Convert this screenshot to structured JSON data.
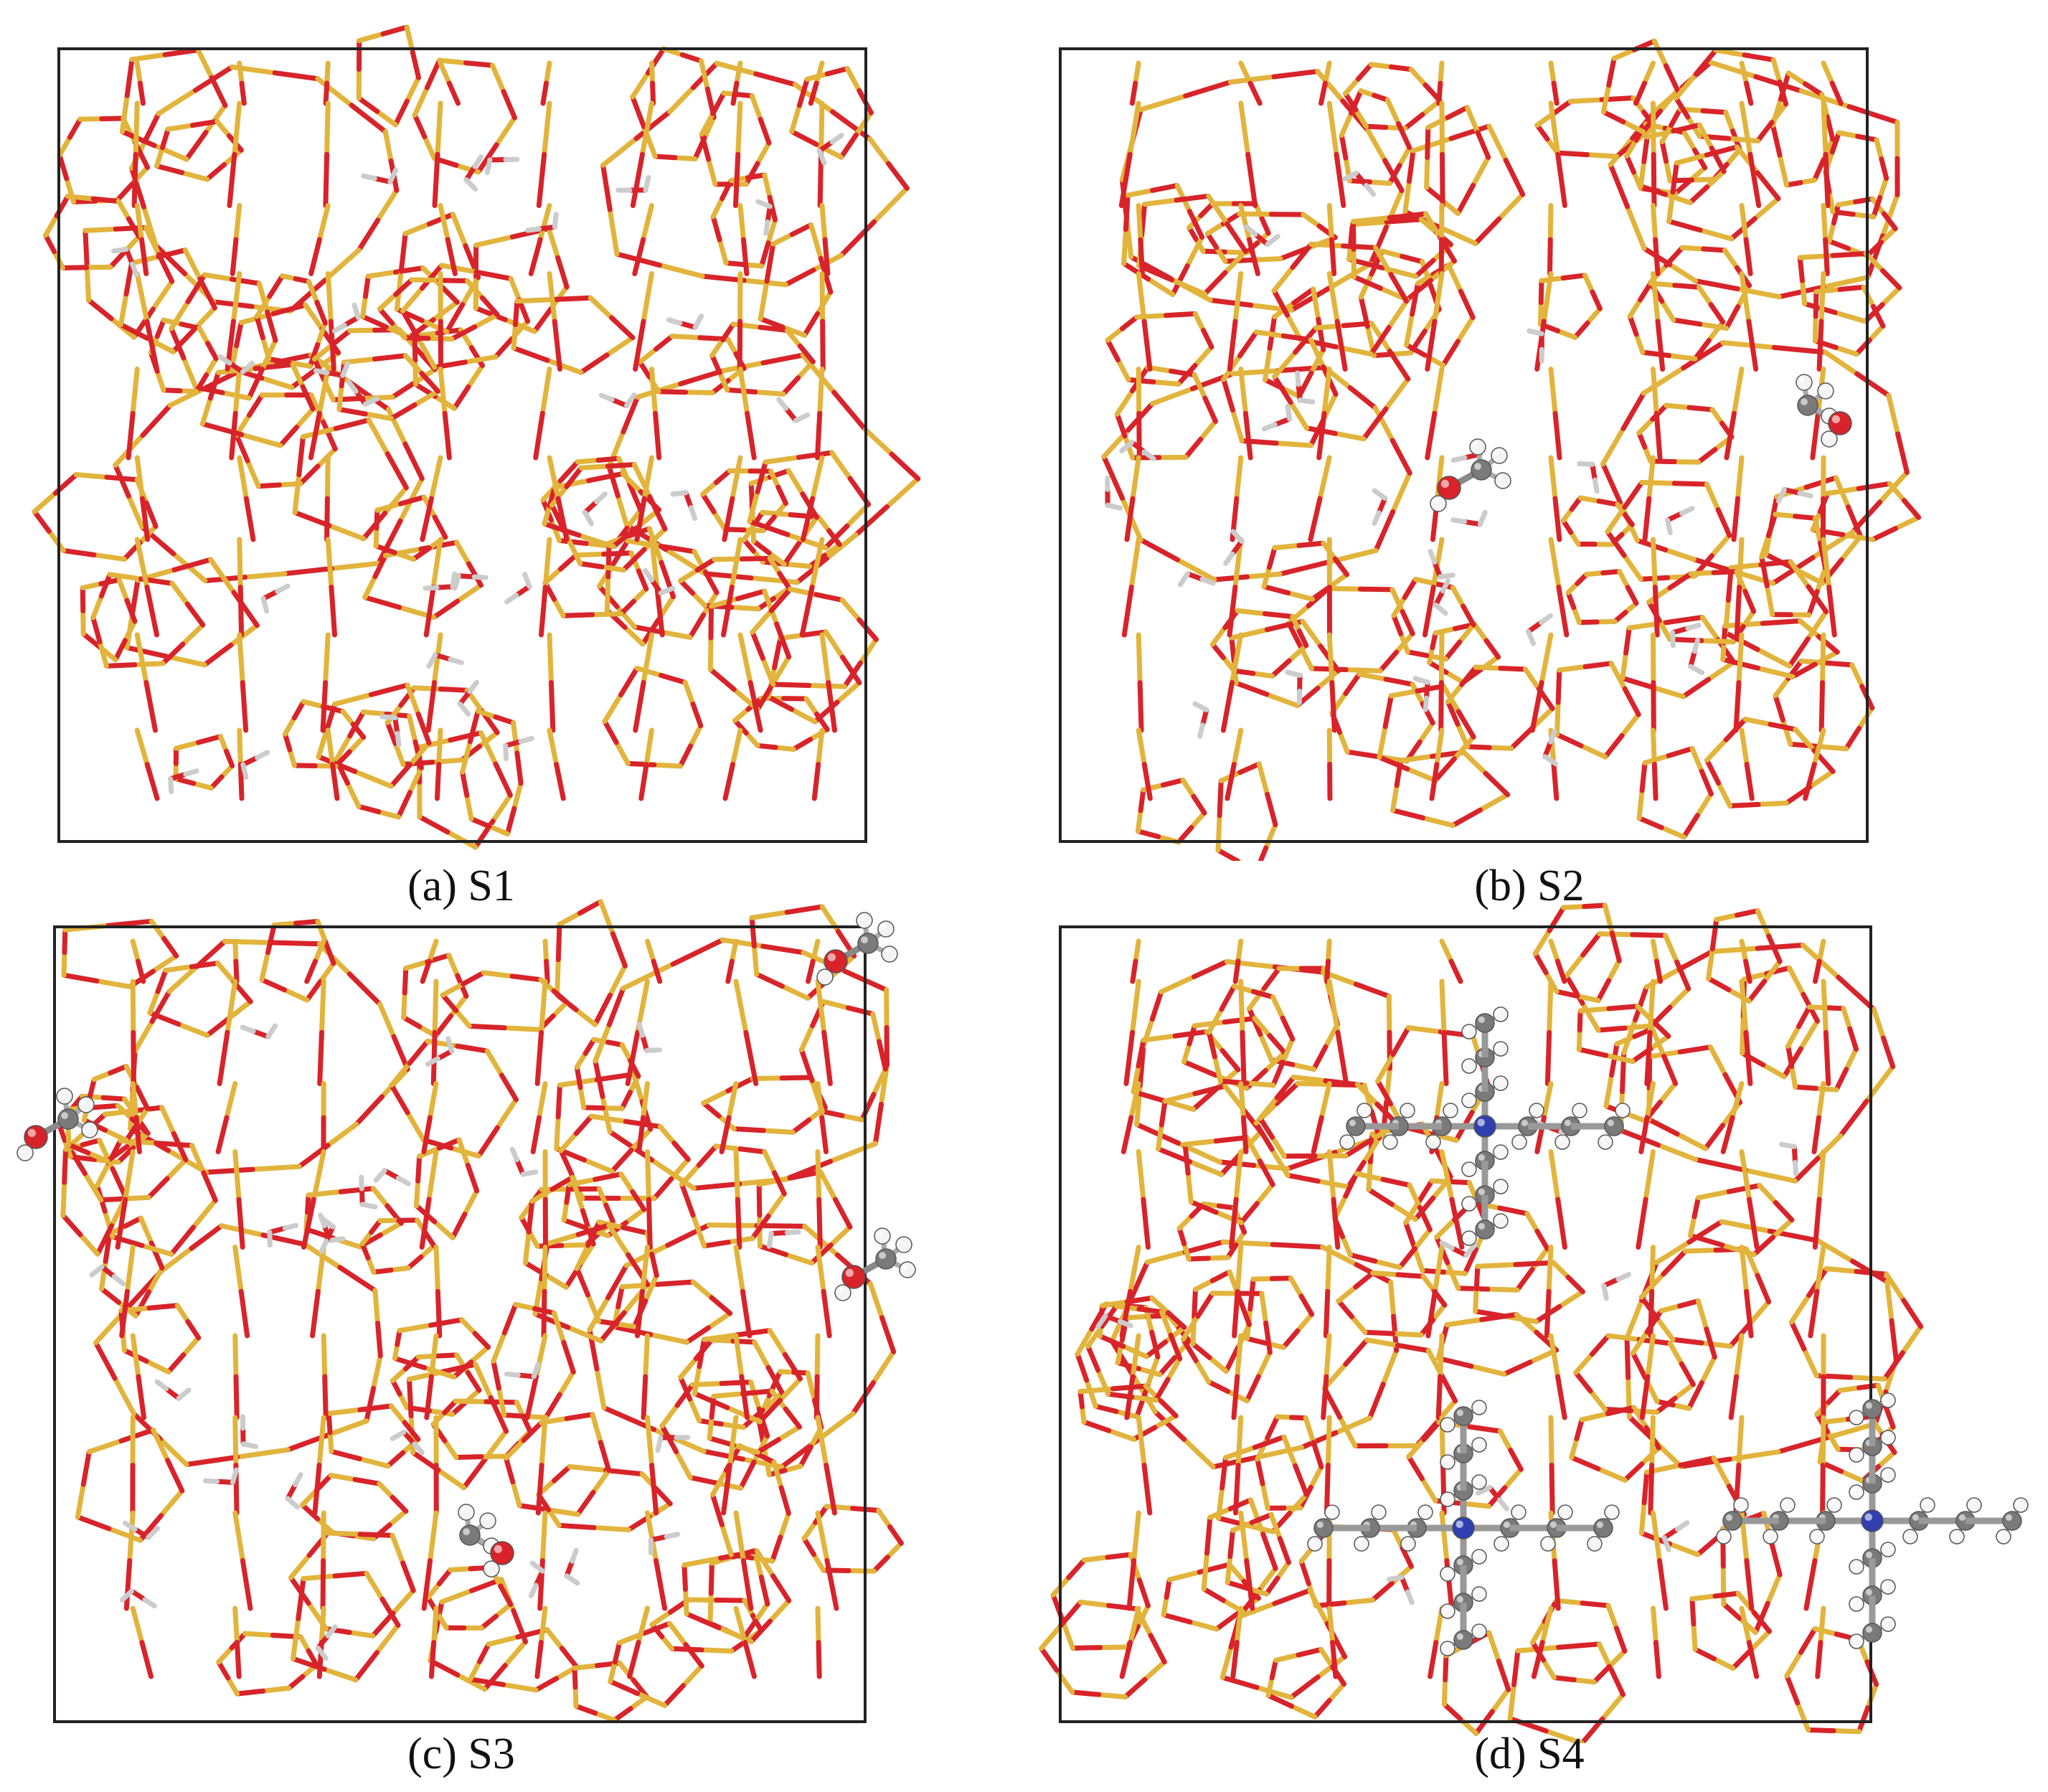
{
  "colors": {
    "oxygen": "#d8232a",
    "silicon": "#e2b43c",
    "hydrogen": "#f2f2f2",
    "carbon": "#7a7a7a",
    "nitrogen": "#2f3fb0",
    "box": "#222222",
    "background": "#ffffff"
  },
  "panels": [
    {
      "id": "a",
      "letter": "(a)",
      "name": "S1",
      "guests": "water"
    },
    {
      "id": "b",
      "letter": "(b)",
      "name": "S2",
      "guests": "water + methanol"
    },
    {
      "id": "c",
      "letter": "(c)",
      "name": "S3",
      "guests": "water + methanol"
    },
    {
      "id": "d",
      "letter": "(d)",
      "name": "S4",
      "guests": "water + tetrapropylammonium"
    }
  ]
}
